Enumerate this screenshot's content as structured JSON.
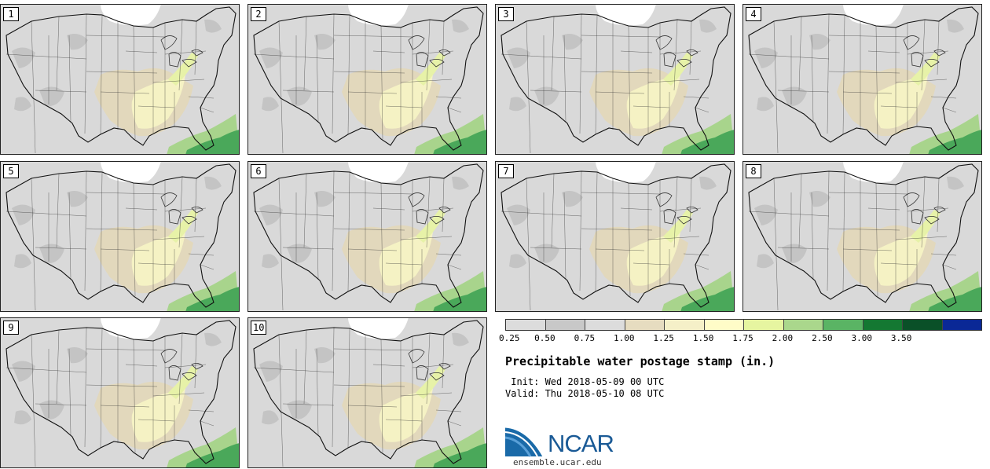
{
  "title": "Precipitable water postage stamp (in.)",
  "init_line": " Init: Wed 2018-05-09 00 UTC",
  "valid_line": "Valid: Thu 2018-05-10 08 UTC",
  "website": "ensemble.ucar.edu",
  "logo_text": "NCAR",
  "stamps": [
    {
      "member": "1"
    },
    {
      "member": "2"
    },
    {
      "member": "3"
    },
    {
      "member": "4"
    },
    {
      "member": "5"
    },
    {
      "member": "6"
    },
    {
      "member": "7"
    },
    {
      "member": "8"
    },
    {
      "member": "9"
    },
    {
      "member": "10"
    }
  ],
  "colorbar": {
    "colors": [
      "#dcdcdc",
      "#c8c8c8",
      "#dcdcdc",
      "#e6dcc0",
      "#f5f0c8",
      "#fffcc8",
      "#e6f5a0",
      "#aad78c",
      "#5ab464",
      "#147832",
      "#0a5028",
      "#0a2896"
    ],
    "labels": [
      "0.25",
      "0.50",
      "0.75",
      "1.00",
      "1.25",
      "1.50",
      "1.75",
      "2.00",
      "2.50",
      "3.00",
      "3.50"
    ]
  },
  "map_colors": {
    "background": "#d9d9d9",
    "dark_gray": "#c4c4c4",
    "tan": "#e2d8bc",
    "light_yellow": "#f5f2c4",
    "yellow_green": "#e7f2a8",
    "green": "#a8d48c",
    "dark_green": "#4aa85a",
    "snow": "#ffffff",
    "line": "#333333"
  }
}
